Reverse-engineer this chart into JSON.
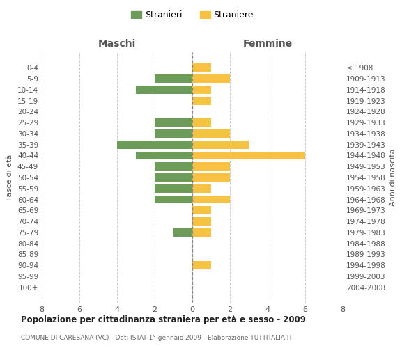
{
  "age_groups": [
    "0-4",
    "5-9",
    "10-14",
    "15-19",
    "20-24",
    "25-29",
    "30-34",
    "35-39",
    "40-44",
    "45-49",
    "50-54",
    "55-59",
    "60-64",
    "65-69",
    "70-74",
    "75-79",
    "80-84",
    "85-89",
    "90-94",
    "95-99",
    "100+"
  ],
  "birth_years": [
    "2004-2008",
    "1999-2003",
    "1994-1998",
    "1989-1993",
    "1984-1988",
    "1979-1983",
    "1974-1978",
    "1969-1973",
    "1964-1968",
    "1959-1963",
    "1954-1958",
    "1949-1953",
    "1944-1948",
    "1939-1943",
    "1934-1938",
    "1929-1933",
    "1924-1928",
    "1919-1923",
    "1914-1918",
    "1909-1913",
    "≤ 1908"
  ],
  "males": [
    0,
    2,
    3,
    0,
    0,
    2,
    2,
    4,
    3,
    2,
    2,
    2,
    2,
    0,
    0,
    1,
    0,
    0,
    0,
    0,
    0
  ],
  "females": [
    1,
    2,
    1,
    1,
    0,
    1,
    2,
    3,
    6,
    2,
    2,
    1,
    2,
    1,
    1,
    1,
    0,
    0,
    1,
    0,
    0
  ],
  "male_color": "#6d9b5a",
  "female_color": "#f5c242",
  "male_label": "Stranieri",
  "female_label": "Straniere",
  "title": "Popolazione per cittadinanza straniera per età e sesso - 2009",
  "subtitle": "COMUNE DI CARESANA (VC) - Dati ISTAT 1° gennaio 2009 - Elaborazione TUTTITALIA.IT",
  "xlabel_left": "Maschi",
  "xlabel_right": "Femmine",
  "ylabel_left": "Fasce di età",
  "ylabel_right": "Anni di nascita",
  "xlim": 8,
  "background_color": "#ffffff",
  "grid_color": "#cccccc"
}
